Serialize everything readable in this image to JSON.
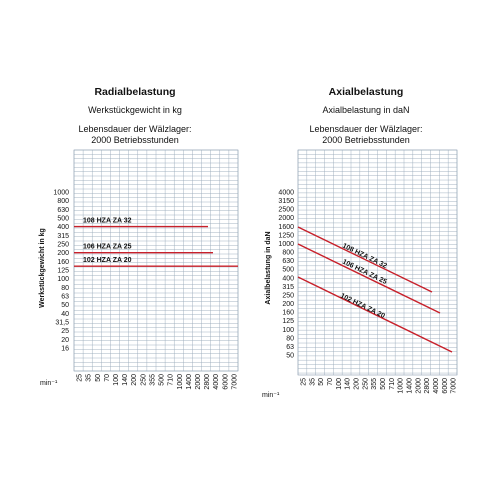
{
  "x_unit": "min⁻¹",
  "chart_data": [
    {
      "type": "line",
      "title": "Radialbelastung",
      "subtitle": "Werkstückgewicht in kg",
      "note_lines": [
        "Lebensdauer der Wälzlager:",
        "2000 Betriebsstunden"
      ],
      "xlabel": "min⁻¹",
      "ylabel": "Werkstückgewicht in kg",
      "x_ticks": [
        "25",
        "35",
        "50",
        "70",
        "100",
        "140",
        "200",
        "250",
        "355",
        "500",
        "710",
        "1000",
        "1400",
        "2000",
        "2800",
        "4000",
        "6000",
        "7000"
      ],
      "y_ticks": [
        "1000",
        "800",
        "630",
        "500",
        "400",
        "315",
        "250",
        "200",
        "160",
        "125",
        "100",
        "80",
        "63",
        "50",
        "40",
        "31,5",
        "25",
        "20",
        "16"
      ],
      "x_scale": "log",
      "y_scale": "log",
      "grid": true,
      "series": [
        {
          "name": "108 HZA ZA 32",
          "x": [
            25,
            2000
          ],
          "y": [
            400,
            400
          ]
        },
        {
          "name": "106 HZA ZA 25",
          "x": [
            25,
            2800
          ],
          "y": [
            200,
            200
          ]
        },
        {
          "name": "102 HZA ZA 20",
          "x": [
            25,
            7000
          ],
          "y": [
            140,
            140
          ]
        }
      ]
    },
    {
      "type": "line",
      "title": "Axialbelastung",
      "subtitle": "Axialbelastung in daN",
      "note_lines": [
        "Lebensdauer der Wälzlager:",
        "2000 Betriebsstunden"
      ],
      "xlabel": "min⁻¹",
      "ylabel": "Axialbelastung in daN",
      "x_ticks": [
        "25",
        "35",
        "50",
        "70",
        "100",
        "140",
        "200",
        "250",
        "355",
        "500",
        "710",
        "1000",
        "1400",
        "2000",
        "2800",
        "4000",
        "6000",
        "7000"
      ],
      "y_ticks": [
        "4000",
        "3150",
        "2500",
        "2000",
        "1600",
        "1250",
        "1000",
        "800",
        "630",
        "500",
        "400",
        "315",
        "250",
        "200",
        "160",
        "125",
        "100",
        "80",
        "63",
        "50"
      ],
      "x_scale": "log",
      "y_scale": "log",
      "grid": true,
      "series": [
        {
          "name": "108 HZA ZA 32",
          "x": [
            25,
            2800
          ],
          "y": [
            1750,
            270
          ]
        },
        {
          "name": "106 HZA ZA 25",
          "x": [
            25,
            4000
          ],
          "y": [
            1050,
            150
          ]
        },
        {
          "name": "102 HZA ZA 20",
          "x": [
            25,
            7000
          ],
          "y": [
            450,
            55
          ]
        }
      ]
    }
  ]
}
